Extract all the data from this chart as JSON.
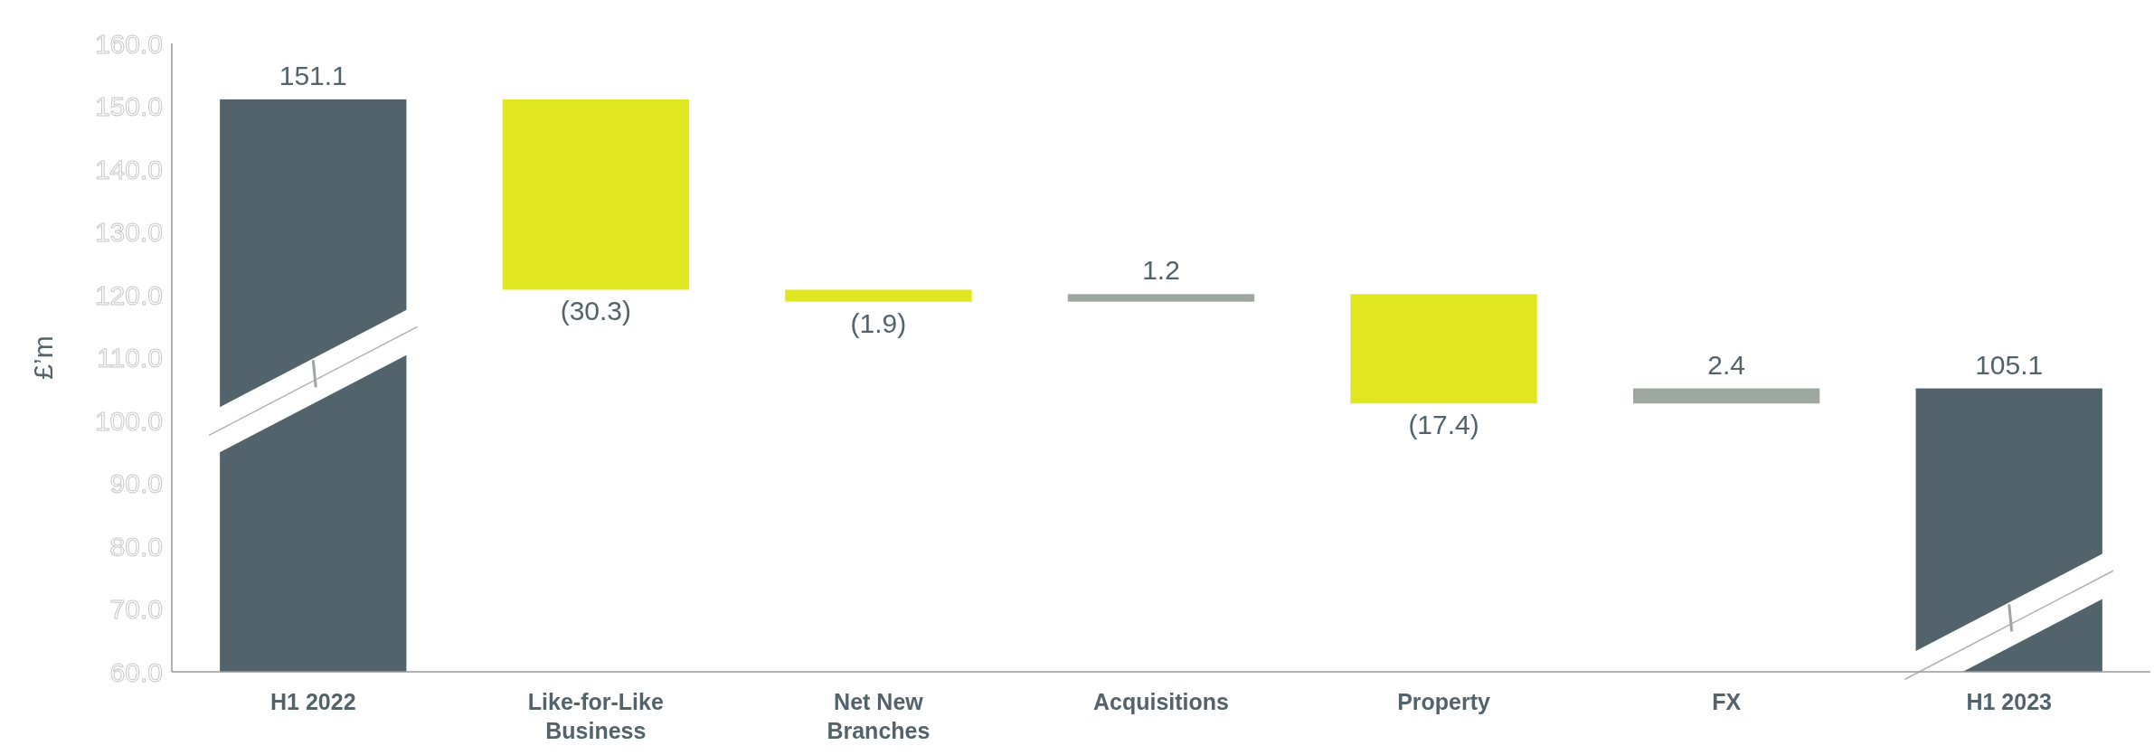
{
  "chart_data": {
    "type": "bar",
    "ylabel": "£’m",
    "categories": [
      "H1 2022",
      "Like-for-Like Business",
      "Net New Branches",
      "Acquisitions",
      "Property",
      "FX",
      "H1 2023"
    ],
    "values": [
      151.1,
      -30.3,
      -1.9,
      1.2,
      -17.4,
      2.4,
      105.1
    ],
    "base": [
      null,
      151.1,
      120.8,
      118.9,
      120.1,
      102.7,
      null
    ],
    "colors": [
      "#52636b",
      "#e0e620",
      "#e0e620",
      "#9ca89e",
      "#e0e620",
      "#9ca89e",
      "#52636b"
    ],
    "value_labels": [
      "151.1",
      "(30.3)",
      "(1.9)",
      "1.2",
      "(17.4)",
      "2.4",
      "105.1"
    ],
    "ylim": [
      60,
      160
    ],
    "yticks": [
      {
        "value": 60,
        "label": "60.0"
      },
      {
        "value": 70,
        "label": "70.0"
      },
      {
        "value": 80,
        "label": "80.0"
      },
      {
        "value": 90,
        "label": "90.0"
      },
      {
        "value": 100,
        "label": "100.0"
      },
      {
        "value": 110,
        "label": "110.0"
      },
      {
        "value": 120,
        "label": "120.0"
      },
      {
        "value": 130,
        "label": "130.0"
      },
      {
        "value": 140,
        "label": "140.0"
      },
      {
        "value": 150,
        "label": "150.0"
      },
      {
        "value": 160,
        "label": "160.0"
      }
    ],
    "grid": false
  }
}
